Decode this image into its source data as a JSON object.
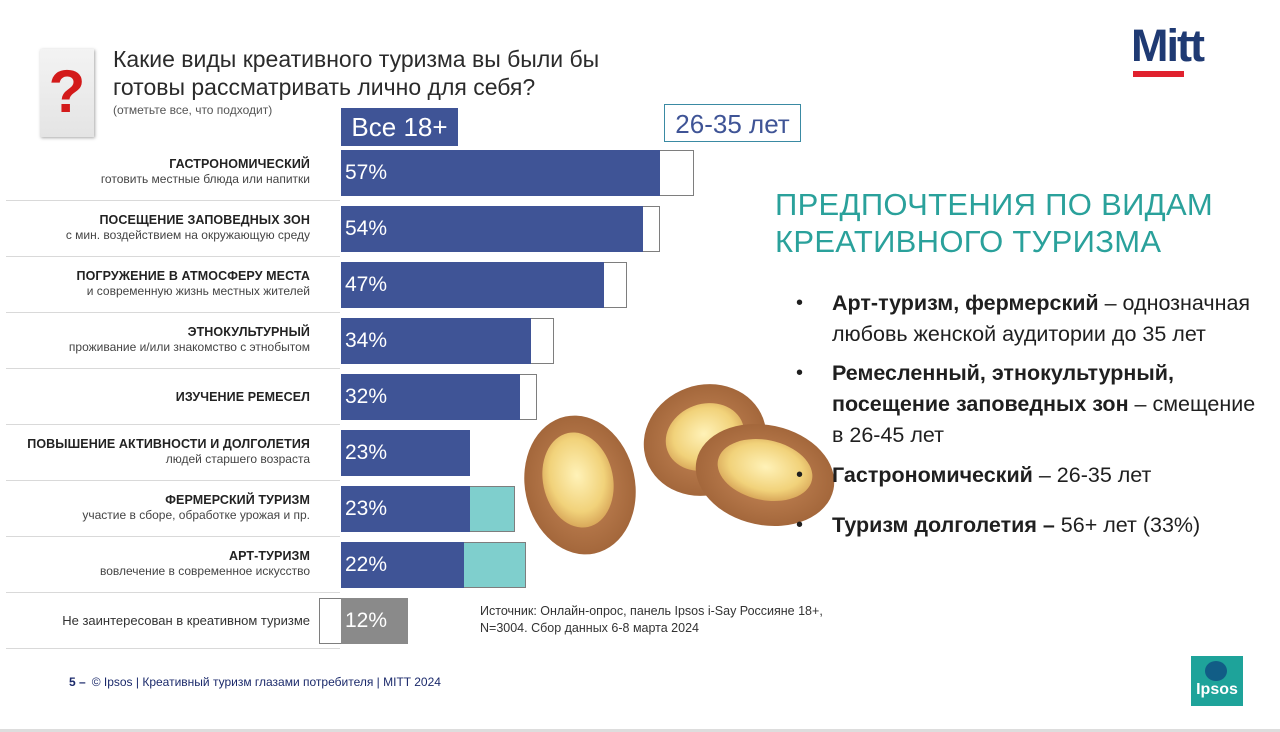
{
  "question": {
    "title": "Какие виды креативного туризма вы были бы готовы рассматривать лично для себя?",
    "hint": "(отметьте все, что подходит)",
    "icon": "question-mark-icon"
  },
  "logo_mitt": "Mitt",
  "logo_ipsos": "Ipsos",
  "chart_data": {
    "type": "bar",
    "orientation": "horizontal",
    "title": "Какие виды креативного туризма вы были бы готовы рассматривать лично для себя?",
    "categories": [
      {
        "title": "ГАСТРОНОМИЧЕСКИЙ",
        "subtitle": "готовить местные блюда или напитки"
      },
      {
        "title": "ПОСЕЩЕНИЕ ЗАПОВЕДНЫХ ЗОН",
        "subtitle": "с мин. воздействием на окружающую среду"
      },
      {
        "title": "ПОГРУЖЕНИЕ В АТМОСФЕРУ МЕСТА",
        "subtitle": "и современную жизнь местных жителей"
      },
      {
        "title": "ЭТНОКУЛЬТУРНЫЙ",
        "subtitle": "проживание и/или знакомство с этнобытом"
      },
      {
        "title": "ИЗУЧЕНИЕ РЕМЕСЕЛ",
        "subtitle": ""
      },
      {
        "title": "ПОВЫШЕНИЕ АКТИВНОСТИ И ДОЛГОЛЕТИЯ",
        "subtitle": "людей старшего возраста"
      },
      {
        "title": "ФЕРМЕРСКИЙ ТУРИЗМ",
        "subtitle": "участие в сборе, обработке урожая и пр."
      },
      {
        "title": "АРТ-ТУРИЗМ",
        "subtitle": "вовлечение в современное искусство"
      },
      {
        "title": "Не заинтересован в креативном туризме",
        "subtitle": "",
        "plain": true
      }
    ],
    "series": [
      {
        "name": "Все 18+",
        "values": [
          57,
          54,
          47,
          34,
          32,
          23,
          23,
          22,
          12
        ],
        "labels": [
          "57%",
          "54%",
          "47%",
          "34%",
          "32%",
          "23%",
          "23%",
          "22%",
          "12%"
        ],
        "color": "#3f5496",
        "special_color": "#8a8a8a"
      },
      {
        "name": "26-35 лет",
        "values": [
          63,
          57,
          51,
          38,
          35,
          18,
          31,
          33,
          4
        ],
        "color_outline": "#ffffff",
        "color_highlight": "#7fcfcd",
        "highlight_indices": [
          6,
          7
        ]
      }
    ],
    "xlim": [
      0,
      100
    ]
  },
  "legend": {
    "all": "Все 18+",
    "age": "26-35 лет"
  },
  "insights": {
    "heading": "ПРЕДПОЧТЕНИЯ ПО ВИДАМ КРЕАТИВНОГО ТУРИЗМА",
    "bullets": [
      {
        "bold": "Арт-туризм, фермерский",
        "rest": " – однозначная любовь женской аудитории до 35 лет"
      },
      {
        "bold": "Ремесленный, этнокультурный, посещение заповедных зон",
        "rest": " – смещение в 26-45 лет"
      },
      {
        "bold": "Гастрономический",
        "rest": " – 26-35 лет"
      },
      {
        "bold": "Туризм долголетия –",
        "rest": " 56+ лет (33%)"
      }
    ]
  },
  "source": "Источник: Онлайн-опрос, панель Ipsos i-Say Россияне 18+, N=3004. Сбор данных 6-8 марта 2024",
  "footer": {
    "page": "5 –",
    "text": "© Ipsos | Креативный туризм глазами потребителя | MITT 2024"
  }
}
